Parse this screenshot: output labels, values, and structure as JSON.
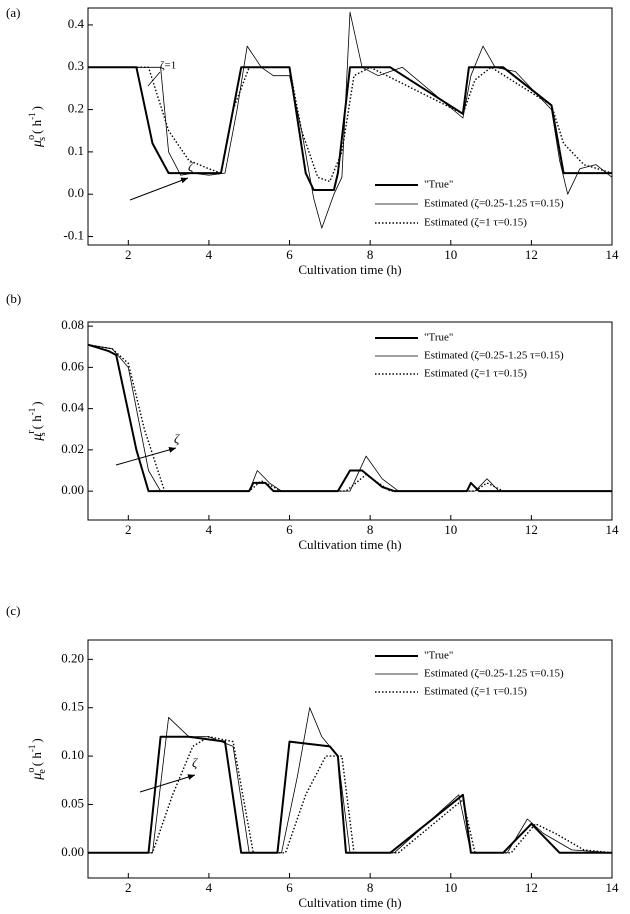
{
  "chart_data": [
    {
      "type": "line",
      "panel_label": "(a)",
      "xlabel": "Cultivation time (h)",
      "ylabel_parts": [
        "μ",
        "o",
        "s",
        "( h",
        "-1",
        ")"
      ],
      "xlim": [
        1,
        14
      ],
      "xticks": [
        2,
        4,
        6,
        8,
        10,
        12,
        14
      ],
      "ylim": [
        -0.12,
        0.44
      ],
      "yticks": [
        -0.1,
        {
          "value": 0,
          "label": "0.0"
        },
        0.1,
        0.2,
        0.3,
        0.4
      ],
      "legend": "lower right",
      "annotations": [
        "ζ",
        "ζ=1"
      ],
      "series": [
        {
          "name": "\"True\"",
          "color": "#000000",
          "style": "thick",
          "x": [
            1,
            2.2,
            2.6,
            3.0,
            4.3,
            4.8,
            6.0,
            6.4,
            6.6,
            7.1,
            7.2,
            7.5,
            8.5,
            10.3,
            10.45,
            11.3,
            12.5,
            12.8,
            14
          ],
          "values": [
            0.3,
            0.3,
            0.12,
            0.05,
            0.05,
            0.3,
            0.3,
            0.05,
            0.01,
            0.01,
            0.05,
            0.3,
            0.3,
            0.19,
            0.3,
            0.3,
            0.21,
            0.05,
            0.05
          ]
        },
        {
          "name": "Estimated (ζ=0.25-1.25   τ=0.15)",
          "color": "#000000",
          "style": "thin",
          "x": [
            1,
            2.8,
            3.0,
            3.3,
            3.6,
            4.0,
            4.4,
            4.7,
            4.95,
            5.3,
            5.6,
            6.0,
            6.3,
            6.6,
            6.8,
            7.1,
            7.3,
            7.5,
            7.8,
            8.2,
            8.8,
            10.3,
            10.5,
            10.8,
            11.1,
            11.6,
            12.5,
            12.7,
            12.9,
            13.2,
            13.6,
            14
          ],
          "values": [
            0.3,
            0.3,
            0.1,
            0.045,
            0.05,
            0.045,
            0.05,
            0.2,
            0.35,
            0.3,
            0.28,
            0.28,
            0.15,
            -0.01,
            -0.08,
            0.0,
            0.04,
            0.43,
            0.3,
            0.28,
            0.3,
            0.18,
            0.28,
            0.35,
            0.3,
            0.29,
            0.2,
            0.08,
            0.0,
            0.06,
            0.07,
            0.04
          ]
        },
        {
          "name": "Estimated (ζ=1   τ=0.15)",
          "color": "#000000",
          "style": "dotted",
          "x": [
            1,
            2.5,
            3.0,
            3.5,
            4.0,
            4.3,
            4.6,
            5.0,
            6.0,
            6.3,
            6.7,
            7.0,
            7.3,
            7.6,
            8.0,
            10.3,
            10.6,
            11.0,
            12.5,
            12.8,
            13.3,
            14
          ],
          "values": [
            0.3,
            0.3,
            0.15,
            0.08,
            0.06,
            0.05,
            0.2,
            0.3,
            0.3,
            0.15,
            0.04,
            0.03,
            0.1,
            0.28,
            0.3,
            0.19,
            0.27,
            0.3,
            0.21,
            0.12,
            0.07,
            0.05
          ]
        }
      ]
    },
    {
      "type": "line",
      "panel_label": "(b)",
      "xlabel": "Cultivation time (h)",
      "ylabel_parts": [
        "μ",
        "r",
        "s",
        "( h",
        "-1",
        ")"
      ],
      "xlim": [
        1,
        14
      ],
      "xticks": [
        2,
        4,
        6,
        8,
        10,
        12,
        14
      ],
      "ylim": [
        -0.014,
        0.082
      ],
      "yticks": [
        {
          "value": 0,
          "label": "0.00"
        },
        {
          "value": 0.02,
          "label": "0.02"
        },
        {
          "value": 0.04,
          "label": "0.04"
        },
        {
          "value": 0.06,
          "label": "0.06"
        },
        {
          "value": 0.08,
          "label": "0.08"
        }
      ],
      "legend": "upper right",
      "annotations": [
        "ζ"
      ],
      "series": [
        {
          "name": "\"True\"",
          "color": "#000000",
          "style": "thick",
          "x": [
            1,
            1.5,
            1.7,
            2.2,
            2.5,
            5,
            5.1,
            5.4,
            5.6,
            7.2,
            7.5,
            7.8,
            8.3,
            8.6,
            10.4,
            10.5,
            10.7,
            14
          ],
          "values": [
            0.071,
            0.068,
            0.066,
            0.02,
            0,
            0,
            0.004,
            0.004,
            0,
            0,
            0.01,
            0.01,
            0.002,
            0,
            0,
            0.004,
            0,
            0
          ]
        },
        {
          "name": "Estimated (ζ=0.25-1.25   τ=0.15)",
          "color": "#000000",
          "style": "thin",
          "x": [
            1,
            1.6,
            2.0,
            2.5,
            2.8,
            5.0,
            5.2,
            5.5,
            5.8,
            7.5,
            7.9,
            8.3,
            8.7,
            10.6,
            10.9,
            11.2,
            14
          ],
          "values": [
            0.071,
            0.069,
            0.06,
            0.01,
            0,
            0,
            0.01,
            0.004,
            0,
            0,
            0.017,
            0.006,
            0,
            0,
            0.006,
            0,
            0
          ]
        },
        {
          "name": "Estimated (ζ=1   τ=0.15)",
          "color": "#000000",
          "style": "dotted",
          "x": [
            1,
            1.6,
            2.0,
            2.4,
            2.9,
            5.0,
            5.3,
            5.8,
            7.4,
            7.9,
            8.5,
            10.6,
            10.9,
            11.3,
            14
          ],
          "values": [
            0.071,
            0.069,
            0.062,
            0.03,
            0,
            0,
            0.005,
            0,
            0,
            0.008,
            0,
            0,
            0.004,
            0,
            0
          ]
        }
      ]
    },
    {
      "type": "line",
      "panel_label": "(c)",
      "xlabel": "Cultivation time (h)",
      "ylabel_parts": [
        "μ",
        "o",
        "e",
        "( h",
        "-1",
        ")"
      ],
      "xlim": [
        1,
        14
      ],
      "xticks": [
        2,
        4,
        6,
        8,
        10,
        12,
        14
      ],
      "ylim": [
        -0.026,
        0.22
      ],
      "yticks": [
        {
          "value": 0,
          "label": "0.00"
        },
        {
          "value": 0.05,
          "label": "0.05"
        },
        {
          "value": 0.1,
          "label": "0.10"
        },
        {
          "value": 0.15,
          "label": "0.15"
        },
        {
          "value": 0.2,
          "label": "0.20"
        }
      ],
      "legend": "upper right",
      "annotations": [
        "ζ"
      ],
      "series": [
        {
          "name": "\"True\"",
          "color": "#000000",
          "style": "thick",
          "x": [
            1,
            2.5,
            2.8,
            3.5,
            4.4,
            4.8,
            5.7,
            6.0,
            7.0,
            7.2,
            7.4,
            8.5,
            10.3,
            10.5,
            11.3,
            12.0,
            12.7,
            14
          ],
          "values": [
            0,
            0,
            0.12,
            0.12,
            0.115,
            0,
            0,
            0.115,
            0.11,
            0.1,
            0,
            0,
            0.06,
            0,
            0,
            0.03,
            0,
            0
          ]
        },
        {
          "name": "Estimated (ζ=0.25-1.25   τ=0.15)",
          "color": "#000000",
          "style": "thin",
          "x": [
            1,
            2.6,
            3.0,
            3.5,
            4.0,
            4.6,
            5.0,
            5.8,
            6.2,
            6.5,
            6.8,
            7.2,
            7.5,
            8.6,
            10.2,
            10.5,
            11.4,
            11.9,
            12.3,
            13,
            14
          ],
          "values": [
            0,
            0,
            0.14,
            0.12,
            0.12,
            0.11,
            0,
            0,
            0.08,
            0.15,
            0.12,
            0.1,
            0,
            0,
            0.06,
            0,
            0,
            0.035,
            0.02,
            0.003,
            0
          ]
        },
        {
          "name": "Estimated (ζ=1   τ=0.15)",
          "color": "#000000",
          "style": "dotted",
          "x": [
            1,
            2.6,
            3.1,
            3.6,
            4.0,
            4.6,
            5.1,
            5.9,
            6.4,
            6.9,
            7.3,
            7.6,
            8.7,
            10.3,
            10.6,
            11.5,
            12.1,
            12.6,
            13.3,
            14
          ],
          "values": [
            0,
            0,
            0.06,
            0.11,
            0.12,
            0.115,
            0,
            0,
            0.06,
            0.1,
            0.1,
            0,
            0,
            0.055,
            0,
            0,
            0.03,
            0.02,
            0.003,
            0
          ]
        }
      ]
    }
  ]
}
